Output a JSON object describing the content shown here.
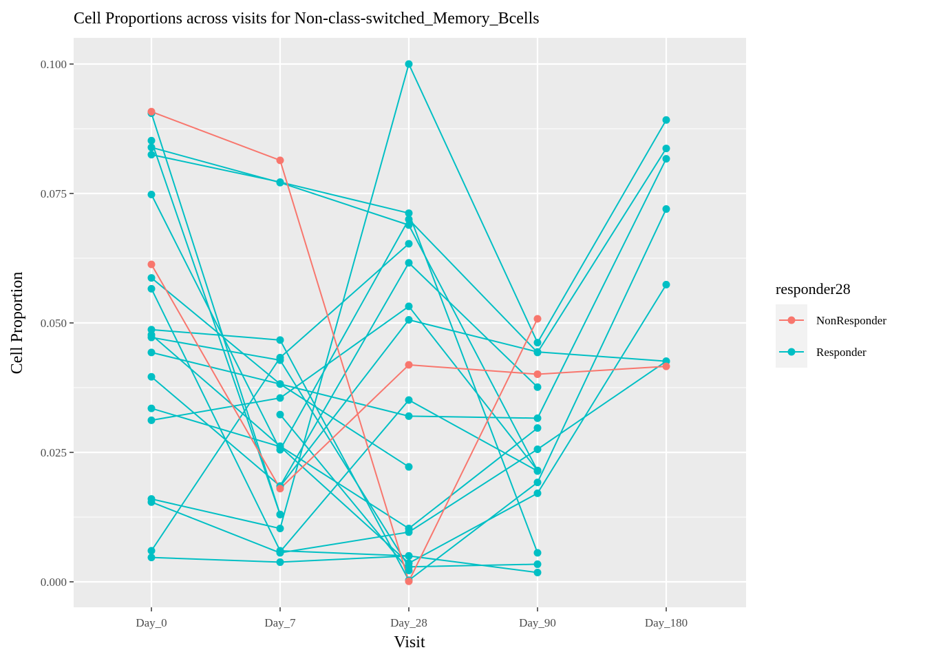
{
  "chart_data": {
    "type": "line",
    "title": "Cell Proportions across visits for Non-class-switched_Memory_Bcells",
    "xlabel": "Visit",
    "ylabel": "Cell Proportion",
    "categories": [
      "Day_0",
      "Day_7",
      "Day_28",
      "Day_90",
      "Day_180"
    ],
    "ylim": [
      -0.0049,
      0.105
    ],
    "yticks": [
      0.0,
      0.025,
      0.05,
      0.075,
      0.1
    ],
    "ytick_labels": [
      "0.000",
      "0.025",
      "0.050",
      "0.075",
      "0.100"
    ],
    "grid": true,
    "legend": {
      "title": "responder28",
      "position": "right",
      "entries": [
        {
          "label": "NonResponder",
          "color": "#F8766D"
        },
        {
          "label": "Responder",
          "color": "#00BFC4"
        }
      ]
    },
    "colors": {
      "NonResponder": "#F8766D",
      "Responder": "#00BFC4"
    },
    "lines": [
      {
        "group": "Responder",
        "points": [
          [
            0,
            0.0905
          ],
          [
            1,
            0.013
          ]
        ]
      },
      {
        "group": "Responder",
        "points": [
          [
            0,
            0.0852
          ],
          [
            1,
            0.013
          ]
        ]
      },
      {
        "group": "Responder",
        "points": [
          [
            0,
            0.0839
          ],
          [
            1,
            0.0771
          ],
          [
            2,
            0.0689
          ],
          [
            3,
            0.0215
          ]
        ]
      },
      {
        "group": "Responder",
        "points": [
          [
            0,
            0.0825
          ],
          [
            1,
            0.0772
          ],
          [
            2,
            0.0712
          ],
          [
            3,
            0.0056
          ]
        ]
      },
      {
        "group": "Responder",
        "points": [
          [
            0,
            0.0748
          ],
          [
            1,
            0.0255
          ],
          [
            2,
            0.07
          ],
          [
            3,
            0.0443
          ],
          [
            4,
            0.0837
          ]
        ]
      },
      {
        "group": "Responder",
        "points": [
          [
            0,
            0.0587
          ],
          [
            1,
            0.0382
          ],
          [
            2,
            0.032
          ],
          [
            3,
            0.0316
          ],
          [
            4,
            0.0817
          ]
        ]
      },
      {
        "group": "Responder",
        "points": [
          [
            0,
            0.0566
          ],
          [
            1,
            0.006
          ],
          [
            2,
            0.005
          ],
          [
            3,
            0.0018
          ]
        ]
      },
      {
        "group": "Responder",
        "points": [
          [
            0,
            0.0487
          ],
          [
            1,
            0.0467
          ],
          [
            2,
            0.0003
          ],
          [
            3,
            0.0192
          ],
          [
            4,
            0.072
          ]
        ]
      },
      {
        "group": "Responder",
        "points": [
          [
            0,
            0.0477
          ],
          [
            1,
            0.0262
          ],
          [
            2,
            0.0103
          ],
          [
            3,
            0.0297
          ]
        ]
      },
      {
        "group": "Responder",
        "points": [
          [
            0,
            0.0472
          ],
          [
            1,
            0.0428
          ],
          [
            2,
            0.0029
          ],
          [
            3,
            0.0034
          ]
        ]
      },
      {
        "group": "Responder",
        "points": [
          [
            0,
            0.0443
          ],
          [
            1,
            0.0382
          ],
          [
            2,
            0.0222
          ]
        ]
      },
      {
        "group": "Responder",
        "points": [
          [
            0,
            0.0396
          ],
          [
            1,
            0.0185
          ],
          [
            2,
            0.0616
          ],
          [
            3,
            0.0376
          ]
        ]
      },
      {
        "group": "Responder",
        "points": [
          [
            0,
            0.0335
          ],
          [
            1,
            0.0261
          ],
          [
            2,
            0.0036
          ],
          [
            3,
            0.0171
          ],
          [
            4,
            0.0574
          ]
        ]
      },
      {
        "group": "Responder",
        "points": [
          [
            0,
            0.0312
          ],
          [
            1,
            0.0355
          ],
          [
            2,
            0.0532
          ],
          [
            3,
            0.0215
          ]
        ]
      },
      {
        "group": "Responder",
        "points": [
          [
            0,
            0.016
          ],
          [
            1,
            0.0103
          ],
          [
            2,
            0.1
          ],
          [
            3,
            0.0462
          ],
          [
            4,
            0.0892
          ]
        ]
      },
      {
        "group": "Responder",
        "points": [
          [
            0,
            0.0154
          ],
          [
            1,
            0.0056
          ],
          [
            2,
            0.0096
          ],
          [
            3,
            0.0256
          ],
          [
            4,
            0.0426
          ]
        ]
      },
      {
        "group": "Responder",
        "points": [
          [
            0,
            0.006
          ],
          [
            1,
            0.0433
          ],
          [
            2,
            0.0653
          ]
        ]
      },
      {
        "group": "Responder",
        "points": [
          [
            0,
            0.0047
          ],
          [
            1,
            0.0038
          ],
          [
            2,
            0.005
          ]
        ]
      },
      {
        "group": "Responder",
        "points": [
          [
            1,
            0.0323
          ],
          [
            2,
            0.0022
          ]
        ]
      },
      {
        "group": "Responder",
        "points": [
          [
            1,
            0.0058
          ],
          [
            2,
            0.0351
          ],
          [
            3,
            0.0214
          ]
        ]
      },
      {
        "group": "Responder",
        "points": [
          [
            1,
            0.0184
          ],
          [
            2,
            0.0506
          ],
          [
            3,
            0.0444
          ],
          [
            4,
            0.0426
          ]
        ]
      },
      {
        "group": "NonResponder",
        "points": [
          [
            0,
            0.0908
          ],
          [
            1,
            0.0814
          ],
          [
            2,
            0.0001
          ],
          [
            3,
            0.0508
          ]
        ]
      },
      {
        "group": "NonResponder",
        "points": [
          [
            0,
            0.0613
          ],
          [
            1,
            0.018
          ],
          [
            2,
            0.0419
          ],
          [
            3,
            0.0401
          ],
          [
            4,
            0.0416
          ]
        ]
      }
    ]
  }
}
